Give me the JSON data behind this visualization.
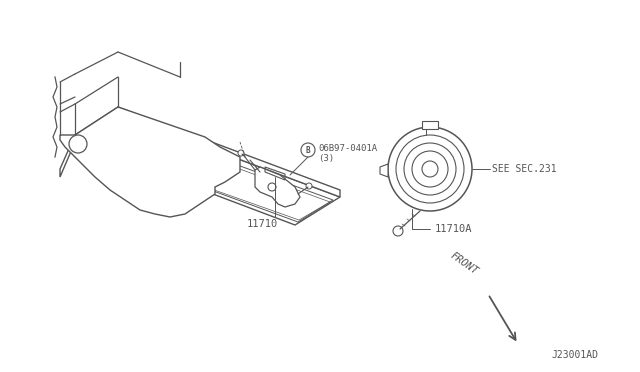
{
  "background_color": "#ffffff",
  "line_color": "#555555",
  "text_color": "#555555",
  "diagram_id": "J23001AD",
  "labels": {
    "front": "FRONT",
    "part_b_num": "06B97-0401A",
    "part_b_qty": "(3)",
    "part_11710": "11710",
    "part_11710a": "11710A",
    "see_sec": "SEE SEC.231"
  },
  "figsize": [
    6.4,
    3.72
  ],
  "dpi": 100
}
